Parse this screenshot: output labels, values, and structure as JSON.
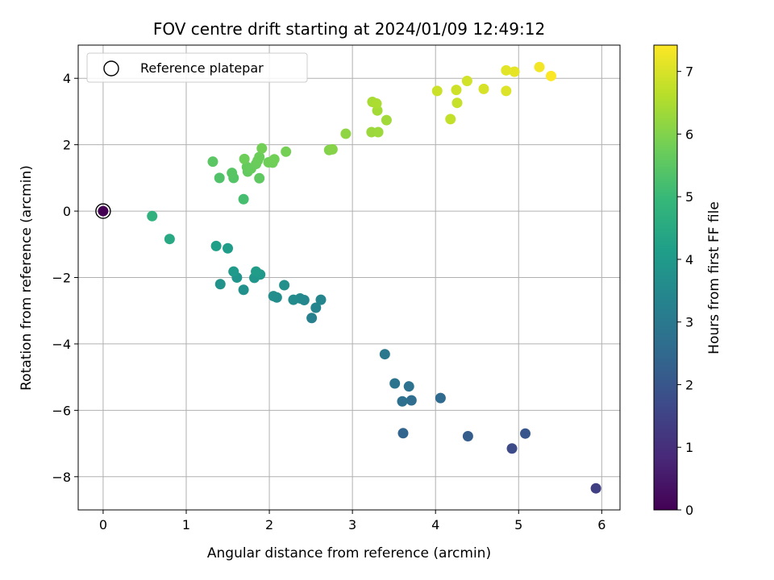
{
  "chart_data": {
    "type": "scatter",
    "title": "FOV centre drift starting at 2024/01/09 12:49:12",
    "xlabel": "Angular distance from reference (arcmin)",
    "ylabel": "Rotation from reference (arcmin)",
    "xlim": [
      -0.3,
      6.22
    ],
    "ylim": [
      -9.0,
      5.0
    ],
    "xticks": [
      0,
      1,
      2,
      3,
      4,
      5,
      6
    ],
    "yticks": [
      -8,
      -6,
      -4,
      -2,
      0,
      2,
      4
    ],
    "grid": true,
    "legend": {
      "placement": "top-left",
      "entries": [
        "Reference platepar"
      ]
    },
    "reference_point": {
      "x": 0,
      "y": 0,
      "c": 0
    },
    "colorbar": {
      "label": "Hours from first FF file",
      "range": [
        0,
        7.42
      ],
      "ticks": [
        0,
        1,
        2,
        3,
        4,
        5,
        6,
        7
      ],
      "colormap": "viridis"
    },
    "points": [
      {
        "x": 0.0,
        "y": 0.0,
        "c": 0.0
      },
      {
        "x": 5.93,
        "y": -8.35,
        "c": 1.4
      },
      {
        "x": 4.92,
        "y": -7.15,
        "c": 1.7
      },
      {
        "x": 5.08,
        "y": -6.7,
        "c": 2.0
      },
      {
        "x": 4.39,
        "y": -6.78,
        "c": 2.2
      },
      {
        "x": 3.61,
        "y": -6.69,
        "c": 2.4
      },
      {
        "x": 4.06,
        "y": -5.63,
        "c": 2.55
      },
      {
        "x": 3.71,
        "y": -5.7,
        "c": 2.65
      },
      {
        "x": 3.6,
        "y": -5.73,
        "c": 2.75
      },
      {
        "x": 3.68,
        "y": -5.28,
        "c": 2.8
      },
      {
        "x": 3.51,
        "y": -5.19,
        "c": 2.85
      },
      {
        "x": 3.39,
        "y": -4.31,
        "c": 2.95
      },
      {
        "x": 2.51,
        "y": -3.22,
        "c": 3.25
      },
      {
        "x": 2.56,
        "y": -2.91,
        "c": 3.35
      },
      {
        "x": 2.62,
        "y": -2.67,
        "c": 3.4
      },
      {
        "x": 2.42,
        "y": -2.68,
        "c": 3.45
      },
      {
        "x": 2.37,
        "y": -2.63,
        "c": 3.5
      },
      {
        "x": 2.29,
        "y": -2.67,
        "c": 3.55
      },
      {
        "x": 2.09,
        "y": -2.6,
        "c": 3.6
      },
      {
        "x": 2.05,
        "y": -2.56,
        "c": 3.65
      },
      {
        "x": 2.18,
        "y": -2.23,
        "c": 3.7
      },
      {
        "x": 1.69,
        "y": -2.37,
        "c": 3.75
      },
      {
        "x": 1.41,
        "y": -2.2,
        "c": 3.8
      },
      {
        "x": 1.61,
        "y": -2.0,
        "c": 3.85
      },
      {
        "x": 1.82,
        "y": -2.01,
        "c": 3.9
      },
      {
        "x": 1.89,
        "y": -1.91,
        "c": 3.95
      },
      {
        "x": 1.57,
        "y": -1.82,
        "c": 4.0
      },
      {
        "x": 1.84,
        "y": -1.82,
        "c": 4.05
      },
      {
        "x": 1.5,
        "y": -1.12,
        "c": 4.1
      },
      {
        "x": 1.36,
        "y": -1.05,
        "c": 4.15
      },
      {
        "x": 0.8,
        "y": -0.84,
        "c": 4.45
      },
      {
        "x": 0.59,
        "y": -0.15,
        "c": 4.75
      },
      {
        "x": 1.69,
        "y": 0.36,
        "c": 5.2
      },
      {
        "x": 1.4,
        "y": 1.0,
        "c": 5.35
      },
      {
        "x": 1.57,
        "y": 1.0,
        "c": 5.4
      },
      {
        "x": 1.55,
        "y": 1.15,
        "c": 5.45
      },
      {
        "x": 1.32,
        "y": 1.49,
        "c": 5.5
      },
      {
        "x": 1.88,
        "y": 0.99,
        "c": 5.55
      },
      {
        "x": 1.74,
        "y": 1.19,
        "c": 5.6
      },
      {
        "x": 1.73,
        "y": 1.33,
        "c": 5.62
      },
      {
        "x": 1.78,
        "y": 1.28,
        "c": 5.65
      },
      {
        "x": 1.84,
        "y": 1.42,
        "c": 5.68
      },
      {
        "x": 1.86,
        "y": 1.52,
        "c": 5.7
      },
      {
        "x": 1.88,
        "y": 1.63,
        "c": 5.72
      },
      {
        "x": 1.7,
        "y": 1.57,
        "c": 5.74
      },
      {
        "x": 1.99,
        "y": 1.47,
        "c": 5.76
      },
      {
        "x": 2.04,
        "y": 1.46,
        "c": 5.78
      },
      {
        "x": 2.06,
        "y": 1.56,
        "c": 5.8
      },
      {
        "x": 1.91,
        "y": 1.89,
        "c": 5.82
      },
      {
        "x": 2.2,
        "y": 1.79,
        "c": 5.84
      },
      {
        "x": 2.72,
        "y": 1.84,
        "c": 6.0
      },
      {
        "x": 2.76,
        "y": 1.86,
        "c": 6.05
      },
      {
        "x": 2.92,
        "y": 2.33,
        "c": 6.15
      },
      {
        "x": 3.23,
        "y": 2.38,
        "c": 6.3
      },
      {
        "x": 3.31,
        "y": 2.38,
        "c": 6.32
      },
      {
        "x": 3.41,
        "y": 2.74,
        "c": 6.35
      },
      {
        "x": 3.3,
        "y": 3.03,
        "c": 6.4
      },
      {
        "x": 3.24,
        "y": 3.29,
        "c": 6.45
      },
      {
        "x": 3.29,
        "y": 3.24,
        "c": 6.47
      },
      {
        "x": 4.18,
        "y": 2.77,
        "c": 6.75
      },
      {
        "x": 4.26,
        "y": 3.26,
        "c": 6.8
      },
      {
        "x": 4.02,
        "y": 3.62,
        "c": 6.85
      },
      {
        "x": 4.25,
        "y": 3.65,
        "c": 6.88
      },
      {
        "x": 4.38,
        "y": 3.92,
        "c": 6.92
      },
      {
        "x": 4.58,
        "y": 3.68,
        "c": 6.97
      },
      {
        "x": 4.85,
        "y": 3.62,
        "c": 7.05
      },
      {
        "x": 4.85,
        "y": 4.24,
        "c": 7.1
      },
      {
        "x": 4.95,
        "y": 4.2,
        "c": 7.15
      },
      {
        "x": 5.25,
        "y": 4.34,
        "c": 7.3
      },
      {
        "x": 5.39,
        "y": 4.07,
        "c": 7.4
      }
    ]
  }
}
